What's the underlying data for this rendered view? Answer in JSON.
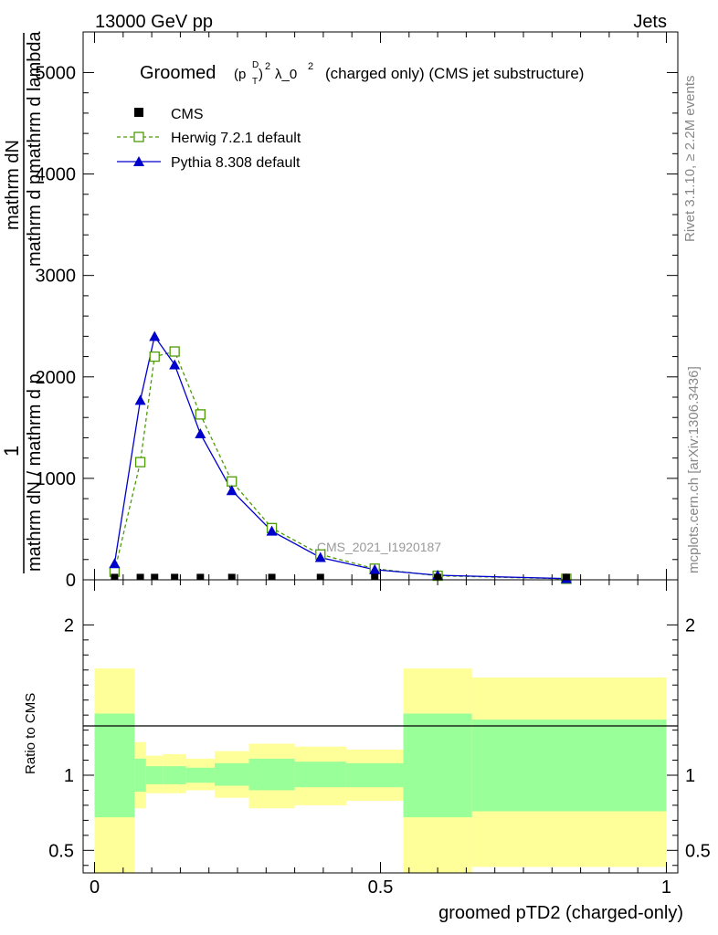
{
  "header": {
    "left": "13000 GeV pp",
    "right": "Jets"
  },
  "side_labels": {
    "rivet": "Rivet 3.1.10, ≥ 2.2M events",
    "mcplots": "mcplots.cern.ch [arXiv:1306.3436]"
  },
  "colors": {
    "herwig": "#4e9a06",
    "pythia": "#0000cc",
    "cms": "#000000",
    "band_inner": "#99ff99",
    "band_outer": "#ffff99"
  },
  "chart_data": [
    {
      "type": "line",
      "title": "Groomed",
      "title_parts": {
        "prefix": "Groomed",
        "p": "(p",
        "sup_D": "D",
        "sub_T": "T",
        "close": ")",
        "sup_2": "2",
        "lambda": "λ_0",
        "sup_2b": "2",
        "suffix": "(charged only) (CMS jet substructure)"
      },
      "ylabel_parts": {
        "one": "1",
        "num": "mathrm dN",
        "den": "mathrm dN / mathrm d p",
        "num2": "mathrm d p",
        "num2_sub": "T",
        "num2_rest": "mathrm d lambda",
        "den_sub": "T",
        "den_rest": "mathrm d p"
      },
      "watermark": "CMS_2021_I1920187",
      "xlim": [
        -0.02,
        1.02
      ],
      "ylim": [
        0,
        5400
      ],
      "yticks": [
        0,
        1000,
        2000,
        3000,
        4000,
        5000
      ],
      "ytick_labels": [
        "0",
        "1000",
        "2000",
        "3000",
        "4000",
        "5000"
      ],
      "legend": [
        "CMS",
        "Herwig 7.2.1 default",
        "Pythia 8.308 default"
      ],
      "series": [
        {
          "name": "CMS",
          "x": [
            0.035,
            0.08,
            0.105,
            0.14,
            0.185,
            0.24,
            0.31,
            0.395,
            0.49,
            0.6,
            0.825
          ],
          "values": [
            5,
            5,
            5,
            5,
            5,
            5,
            5,
            5,
            5,
            5,
            5
          ]
        },
        {
          "name": "Herwig 7.2.1 default",
          "x": [
            0.035,
            0.08,
            0.105,
            0.14,
            0.185,
            0.24,
            0.31,
            0.395,
            0.49,
            0.6,
            0.825
          ],
          "values": [
            80,
            1160,
            2200,
            2250,
            1630,
            970,
            510,
            250,
            110,
            40,
            10
          ]
        },
        {
          "name": "Pythia 8.308 default",
          "x": [
            0.035,
            0.08,
            0.105,
            0.14,
            0.185,
            0.24,
            0.31,
            0.395,
            0.49,
            0.6,
            0.825
          ],
          "values": [
            160,
            1770,
            2400,
            2120,
            1440,
            880,
            480,
            220,
            100,
            45,
            12
          ]
        }
      ]
    },
    {
      "type": "area",
      "ylabel": "Ratio to CMS",
      "xlabel": "groomed pTD2 (charged-only)",
      "xlim": [
        -0.02,
        1.02
      ],
      "ylim": [
        0.35,
        2.3
      ],
      "yticks": [
        0.5,
        1,
        2
      ],
      "ytick_labels": [
        "0.5",
        "1",
        "2"
      ],
      "xticks": [
        0,
        0.5,
        1
      ],
      "xtick_labels": [
        "0",
        "0.5",
        "1"
      ],
      "bins": [
        {
          "lo": 0.0,
          "hi": 0.07,
          "inner_lo": 0.72,
          "inner_hi": 1.41,
          "outer_lo": 0.35,
          "outer_hi": 1.71
        },
        {
          "lo": 0.07,
          "hi": 0.09,
          "inner_lo": 0.89,
          "inner_hi": 1.11,
          "outer_lo": 0.78,
          "outer_hi": 1.22
        },
        {
          "lo": 0.09,
          "hi": 0.12,
          "inner_lo": 0.94,
          "inner_hi": 1.06,
          "outer_lo": 0.88,
          "outer_hi": 1.13
        },
        {
          "lo": 0.12,
          "hi": 0.16,
          "inner_lo": 0.94,
          "inner_hi": 1.06,
          "outer_lo": 0.88,
          "outer_hi": 1.14
        },
        {
          "lo": 0.16,
          "hi": 0.21,
          "inner_lo": 0.95,
          "inner_hi": 1.05,
          "outer_lo": 0.9,
          "outer_hi": 1.11
        },
        {
          "lo": 0.21,
          "hi": 0.27,
          "inner_lo": 0.93,
          "inner_hi": 1.08,
          "outer_lo": 0.85,
          "outer_hi": 1.16
        },
        {
          "lo": 0.27,
          "hi": 0.35,
          "inner_lo": 0.9,
          "inner_hi": 1.11,
          "outer_lo": 0.78,
          "outer_hi": 1.21
        },
        {
          "lo": 0.35,
          "hi": 0.44,
          "inner_lo": 0.92,
          "inner_hi": 1.09,
          "outer_lo": 0.8,
          "outer_hi": 1.19
        },
        {
          "lo": 0.44,
          "hi": 0.54,
          "inner_lo": 0.92,
          "inner_hi": 1.08,
          "outer_lo": 0.83,
          "outer_hi": 1.17
        },
        {
          "lo": 0.54,
          "hi": 0.66,
          "inner_lo": 0.72,
          "inner_hi": 1.41,
          "outer_lo": 0.35,
          "outer_hi": 1.71
        },
        {
          "lo": 0.66,
          "hi": 1.0,
          "inner_lo": 0.76,
          "inner_hi": 1.37,
          "outer_lo": 0.39,
          "outer_hi": 1.65
        }
      ]
    }
  ]
}
